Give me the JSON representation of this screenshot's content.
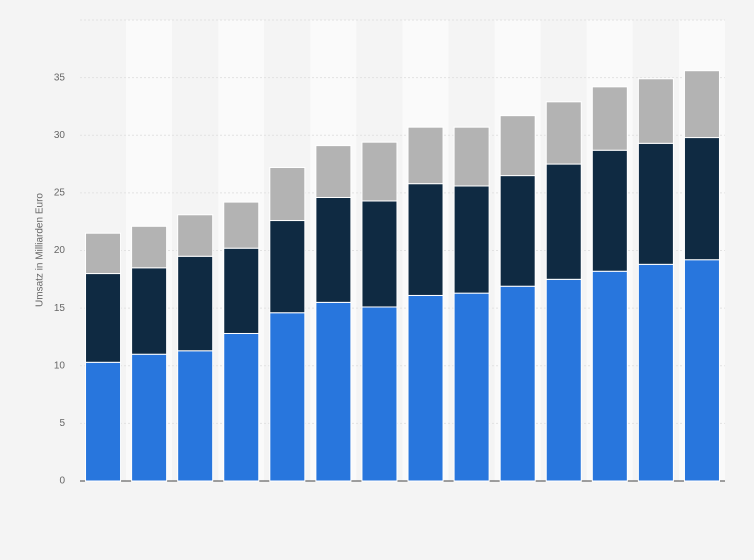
{
  "chart_data": {
    "type": "stacked-bar",
    "y_label": "Umsatz in Milliarden Euro",
    "categories": [
      null,
      null,
      null,
      null,
      null,
      null,
      null,
      null,
      null,
      null,
      null,
      null,
      null,
      null
    ],
    "series": [
      {
        "color": "#2876dd",
        "values": [
          10.3,
          11.0,
          11.3,
          12.8,
          14.6,
          15.5,
          15.1,
          16.1,
          16.3,
          16.9,
          17.5,
          18.2,
          18.8,
          19.2
        ]
      },
      {
        "color": "#0f2a42",
        "values": [
          7.7,
          7.5,
          8.2,
          7.4,
          8.0,
          9.1,
          9.2,
          9.7,
          9.3,
          9.6,
          10.0,
          10.5,
          10.5,
          10.6
        ]
      },
      {
        "color": "#b3b3b3",
        "values": [
          3.5,
          3.6,
          3.6,
          4.0,
          4.6,
          4.5,
          5.1,
          4.9,
          5.1,
          5.2,
          5.4,
          5.5,
          5.6,
          5.8
        ]
      }
    ],
    "ylim": [
      0,
      40
    ],
    "yticks": [
      0,
      5,
      10,
      15,
      20,
      25,
      30,
      35
    ],
    "grid": true
  }
}
